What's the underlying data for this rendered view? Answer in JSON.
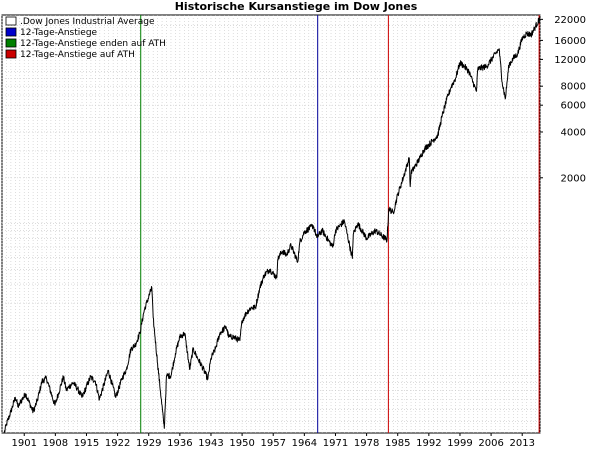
{
  "chart_data": {
    "type": "line",
    "title": "Historische Kursanstiege im Dow Jones",
    "xlabel": "",
    "ylabel": "",
    "x_range": [
      1896,
      2017
    ],
    "y_scale": "log",
    "ylim": [
      42,
      23500
    ],
    "grid": true,
    "legend_position": "top-left",
    "x_ticks": [
      1901,
      1908,
      1915,
      1922,
      1929,
      1936,
      1943,
      1950,
      1957,
      1964,
      1971,
      1978,
      1985,
      1992,
      1999,
      2006,
      2013
    ],
    "y_ticks": [
      22000,
      16000,
      12000,
      8000,
      6000,
      4000,
      2000
    ],
    "legend": [
      {
        "label": ".Dow Jones Industrial Average",
        "color": "#ffffff"
      },
      {
        "label": "12-Tage-Anstiege",
        "color": "#0000cc"
      },
      {
        "label": "12-Tage-Anstiege enden auf ATH",
        "color": "#008000"
      },
      {
        "label": "12-Tage-Anstiege auf ATH",
        "color": "#cc0000"
      }
    ],
    "markers": [
      {
        "x": 1927.2,
        "color": "#008000"
      },
      {
        "x": 1967.0,
        "color": "#000099"
      },
      {
        "x": 1982.9,
        "color": "#cc0000"
      },
      {
        "x": 2016.8,
        "color": "#cc0000"
      }
    ],
    "series": [
      {
        "name": ".Dow Jones Industrial Average",
        "color": "#000000",
        "x": [
          1896.5,
          1897,
          1898,
          1899,
          1899.7,
          1900,
          1901.3,
          1902,
          1903,
          1903.9,
          1905,
          1906,
          1907.9,
          1909.8,
          1910.5,
          1911,
          1912,
          1913,
          1914,
          1915.9,
          1917,
          1917.9,
          1919.9,
          1921.6,
          1923,
          1924,
          1925,
          1926,
          1927,
          1928,
          1929.7,
          1930,
          1931,
          1932.5,
          1933,
          1934,
          1935,
          1936,
          1937.1,
          1938.2,
          1939,
          1940,
          1941,
          1942.3,
          1943,
          1944,
          1945,
          1946.4,
          1947,
          1948,
          1949.5,
          1950,
          1951,
          1952,
          1953,
          1954,
          1955,
          1956.2,
          1957.8,
          1958,
          1959,
          1960,
          1961,
          1962.5,
          1963,
          1964,
          1966,
          1966.8,
          1968,
          1970.4,
          1971,
          1973,
          1974.8,
          1975,
          1976,
          1978,
          1980,
          1982.6,
          1983,
          1984,
          1985,
          1986,
          1987.6,
          1987.8,
          1988,
          1990,
          1991,
          1992,
          1994,
          1995,
          1996,
          1997,
          1998,
          1999,
          2000,
          2001,
          2002.7,
          2003,
          2004,
          2005,
          2007.8,
          2008.5,
          2009.2,
          2010,
          2011,
          2012,
          2013,
          2014,
          2015,
          2016,
          2017
        ],
        "values": [
          42,
          48,
          58,
          72,
          62,
          66,
          76,
          68,
          58,
          68,
          92,
          96,
          64,
          98,
          80,
          84,
          90,
          82,
          72,
          98,
          92,
          70,
          108,
          72,
          96,
          110,
          150,
          160,
          190,
          270,
          380,
          240,
          120,
          45,
          100,
          100,
          140,
          180,
          190,
          110,
          150,
          130,
          115,
          95,
          130,
          150,
          190,
          210,
          180,
          180,
          170,
          230,
          260,
          280,
          280,
          380,
          460,
          500,
          440,
          580,
          660,
          620,
          720,
          560,
          760,
          880,
          970,
          810,
          900,
          700,
          900,
          1040,
          590,
          850,
          1000,
          800,
          900,
          780,
          1250,
          1180,
          1550,
          1900,
          2700,
          1750,
          2150,
          2700,
          3100,
          3300,
          3800,
          5100,
          6500,
          7900,
          9000,
          11400,
          10800,
          10000,
          7400,
          10400,
          10600,
          10800,
          14100,
          8500,
          6600,
          11000,
          12200,
          13100,
          16500,
          17800,
          17400,
          19800,
          22400
        ]
      }
    ]
  }
}
